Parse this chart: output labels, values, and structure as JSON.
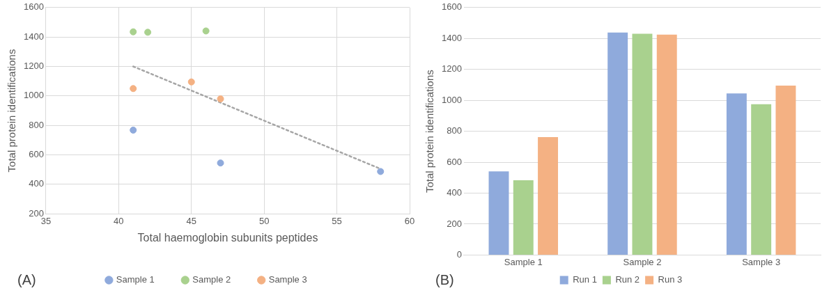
{
  "chart_data": [
    {
      "type": "scatter",
      "xlabel": "Total haemoglobin subunits peptides",
      "ylabel": "Total protein identifications",
      "xlim": [
        35,
        60
      ],
      "xticks": [
        35,
        40,
        45,
        50,
        55,
        60
      ],
      "ylim": [
        200,
        1600
      ],
      "yticks": [
        200,
        400,
        600,
        800,
        1000,
        1200,
        1400,
        1600
      ],
      "grid": true,
      "legend": "bottom",
      "marker": "circle",
      "annotations": [
        "(A)"
      ],
      "series": [
        {
          "name": "Sample 1",
          "color": "#8faadc",
          "x": [
            41,
            47,
            58
          ],
          "values": [
            768,
            545,
            487
          ]
        },
        {
          "name": "Sample 2",
          "color": "#a9d18e",
          "x": [
            41,
            42,
            46
          ],
          "values": [
            1435,
            1432,
            1441
          ]
        },
        {
          "name": "Sample 3",
          "color": "#f4b183",
          "x": [
            41,
            45,
            47
          ],
          "values": [
            1050,
            1095,
            980
          ]
        },
        {
          "type": "line",
          "color": "#a6a6a6",
          "line_style": "dotted",
          "marker": "none",
          "x": [
            41,
            58
          ],
          "values": [
            1200,
            505
          ]
        }
      ]
    },
    {
      "type": "bar",
      "ylabel": "Total protein identifications",
      "categories": [
        "Sample 1",
        "Sample 2",
        "Sample 3"
      ],
      "ylim": [
        0,
        1600
      ],
      "yticks": [
        0,
        200,
        400,
        600,
        800,
        1000,
        1200,
        1400,
        1600
      ],
      "grid": "y",
      "legend": "bottom",
      "annotations": [
        "(B)"
      ],
      "series": [
        {
          "name": "Run 1",
          "color": "#8faadc",
          "values": [
            541,
            1438,
            1045
          ]
        },
        {
          "name": "Run 2",
          "color": "#a9d18e",
          "values": [
            483,
            1430,
            975
          ]
        },
        {
          "name": "Run 3",
          "color": "#f4b183",
          "values": [
            762,
            1425,
            1095
          ]
        }
      ]
    }
  ]
}
